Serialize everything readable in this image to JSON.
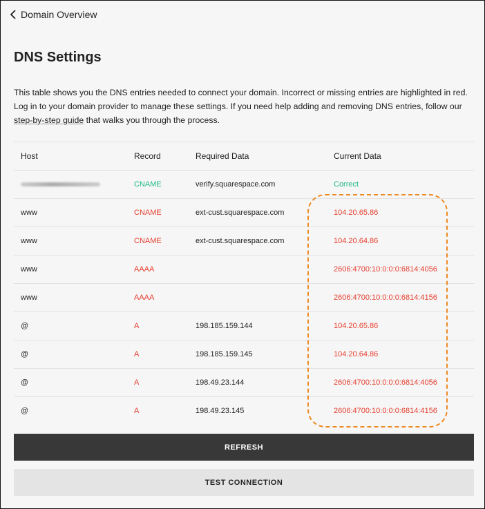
{
  "nav": {
    "back_label": "Domain Overview"
  },
  "page": {
    "title": "DNS Settings",
    "description_before": "This table shows you the DNS entries needed to connect your domain. Incorrect or missing entries are highlighted in red. Log in to your domain provider to manage these settings. If you need help adding and removing DNS entries, follow our ",
    "link_text": "step-by-step guide",
    "description_after": " that walks you through the process."
  },
  "table": {
    "headers": [
      "Host",
      "Record",
      "Required Data",
      "Current Data"
    ],
    "rows": [
      {
        "host": "",
        "host_redacted": true,
        "record": "CNAME",
        "required": "verify.squarespace.com",
        "current": "Correct",
        "status": "ok"
      },
      {
        "host": "www",
        "record": "CNAME",
        "required": "ext-cust.squarespace.com",
        "current": "104.20.65.86",
        "status": "error"
      },
      {
        "host": "www",
        "record": "CNAME",
        "required": "ext-cust.squarespace.com",
        "current": "104.20.64.86",
        "status": "error"
      },
      {
        "host": "www",
        "record": "AAAA",
        "required": "",
        "current": "2606:4700:10:0:0:0:6814:4056",
        "status": "error"
      },
      {
        "host": "www",
        "record": "AAAA",
        "required": "",
        "current": "2606:4700:10:0:0:0:6814:4156",
        "status": "error"
      },
      {
        "host": "@",
        "record": "A",
        "required": "198.185.159.144",
        "current": "104.20.65.86",
        "status": "error"
      },
      {
        "host": "@",
        "record": "A",
        "required": "198.185.159.145",
        "current": "104.20.64.86",
        "status": "error"
      },
      {
        "host": "@",
        "record": "A",
        "required": "198.49.23.144",
        "current": "2606:4700:10:0:0:0:6814:4056",
        "status": "error"
      },
      {
        "host": "@",
        "record": "A",
        "required": "198.49.23.145",
        "current": "2606:4700:10:0:0:0:6814:4156",
        "status": "error"
      }
    ]
  },
  "buttons": {
    "refresh": "REFRESH",
    "test": "TEST CONNECTION"
  },
  "colors": {
    "error": "#e53e2f",
    "ok": "#1fb883",
    "highlight": "#ee8a22"
  }
}
